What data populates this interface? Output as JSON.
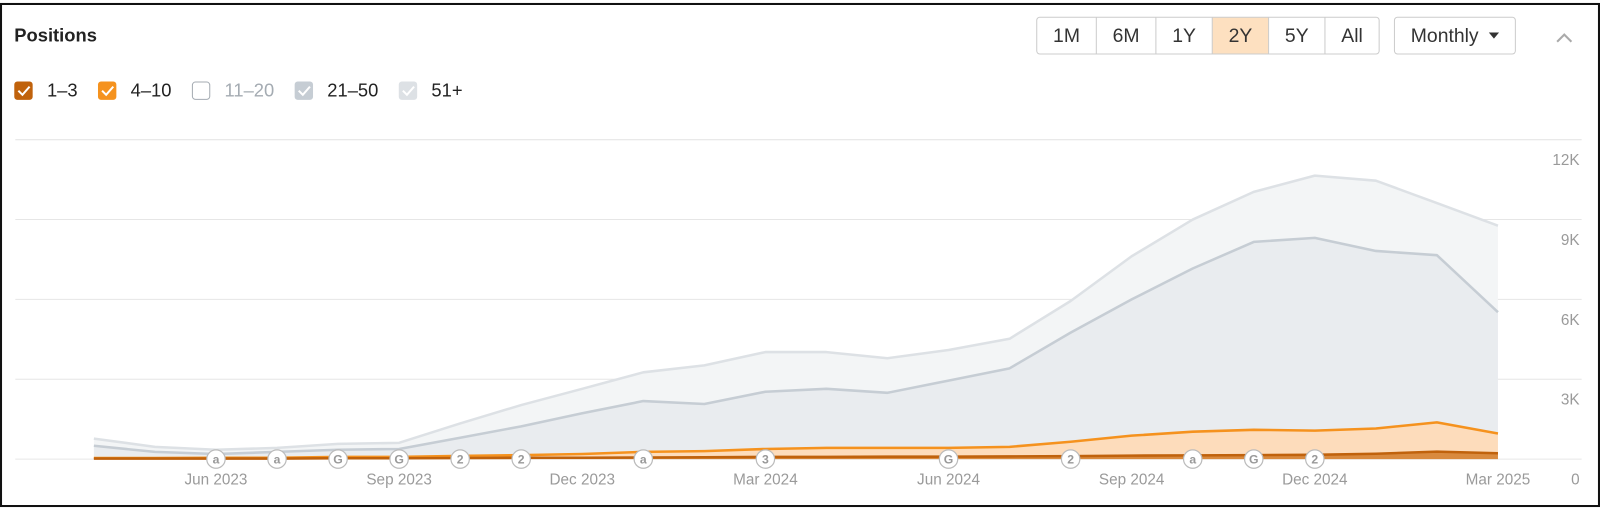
{
  "header": {
    "title": "Positions"
  },
  "controls": {
    "ranges": [
      "1M",
      "6M",
      "1Y",
      "2Y",
      "5Y",
      "All"
    ],
    "active_range": "2Y",
    "interval": "Monthly"
  },
  "chart_data": {
    "type": "area",
    "stacked": true,
    "categories": [
      null,
      null,
      "Jun 2023",
      null,
      null,
      "Sep 2023",
      null,
      null,
      "Dec 2023",
      null,
      null,
      "Mar 2024",
      null,
      null,
      "Jun 2024",
      null,
      null,
      "Sep 2024",
      null,
      null,
      "Dec 2024",
      null,
      null,
      "Mar 2025"
    ],
    "series": [
      {
        "name": "1–3",
        "checked": true,
        "color": "#c0620c",
        "fill": "#d98a3e",
        "values": [
          20,
          20,
          20,
          20,
          30,
          30,
          40,
          50,
          50,
          60,
          70,
          80,
          80,
          90,
          90,
          100,
          110,
          130,
          140,
          150,
          160,
          200,
          280,
          220
        ]
      },
      {
        "name": "4–10",
        "checked": true,
        "color": "#f5921e",
        "fill": "#fddcbb",
        "values": [
          20,
          20,
          30,
          30,
          50,
          50,
          80,
          100,
          140,
          210,
          230,
          300,
          340,
          330,
          330,
          360,
          540,
          750,
          890,
          950,
          910,
          950,
          1100,
          740
        ]
      },
      {
        "name": "11–20",
        "checked": false,
        "color": "#a4abb2"
      },
      {
        "name": "21–50",
        "checked": true,
        "color": "#c6cdd4",
        "fill": "#e9ecef",
        "values": [
          460,
          230,
          140,
          220,
          270,
          300,
          680,
          1080,
          1530,
          1910,
          1770,
          2150,
          2220,
          2070,
          2530,
          2950,
          4100,
          5120,
          6130,
          7060,
          7240,
          6670,
          6280,
          4560
        ]
      },
      {
        "name": "51+",
        "checked": true,
        "color": "#dde1e5",
        "fill": "#f3f5f6",
        "values": [
          270,
          190,
          160,
          150,
          220,
          230,
          540,
          800,
          920,
          1080,
          1450,
          1490,
          1380,
          1300,
          1150,
          1110,
          1190,
          1620,
          1840,
          1880,
          2340,
          2640,
          1960,
          3250
        ]
      }
    ],
    "ylim": [
      0,
      12000
    ],
    "yticks": [
      0,
      {
        "value": 3000,
        "label": "3K"
      },
      {
        "value": 6000,
        "label": "6K"
      },
      {
        "value": 9000,
        "label": "9K"
      },
      {
        "value": 12000,
        "label": "12K"
      }
    ],
    "grid": true,
    "annotations": [
      {
        "at": 2,
        "text": "a"
      },
      {
        "at": 3,
        "text": "a"
      },
      {
        "at": 4,
        "text": "G"
      },
      {
        "at": 5,
        "text": "G"
      },
      {
        "at": 6,
        "text": "2"
      },
      {
        "at": 7,
        "text": "2"
      },
      {
        "at": 9,
        "text": "a"
      },
      {
        "at": 11,
        "text": "3"
      },
      {
        "at": 14,
        "text": "G"
      },
      {
        "at": 16,
        "text": "2"
      },
      {
        "at": 18,
        "text": "a"
      },
      {
        "at": 19,
        "text": "G"
      },
      {
        "at": 20,
        "text": "2"
      }
    ]
  }
}
